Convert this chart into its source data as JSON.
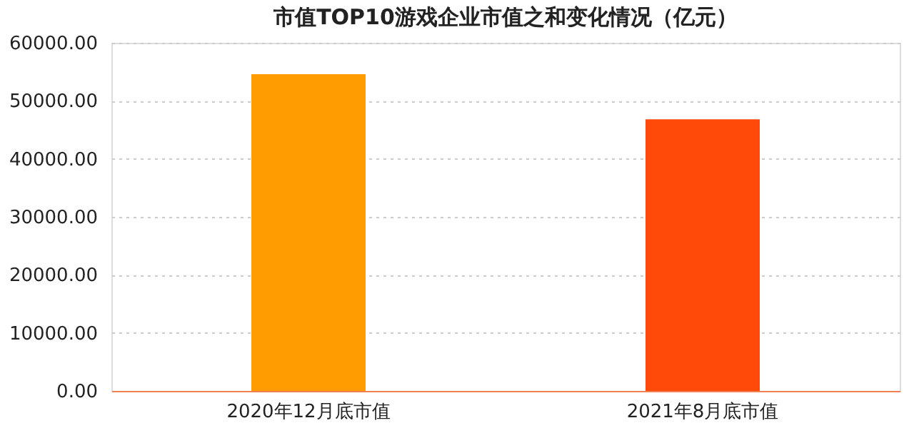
{
  "chart_data": {
    "type": "bar",
    "title": "市值TOP10游戏企业市值之和变化情况（亿元）",
    "categories": [
      "2020年12月底市值",
      "2021年8月底市值"
    ],
    "values": [
      54600,
      46800
    ],
    "colors": [
      "#ff9c00",
      "#ff4a0a"
    ],
    "ylim": [
      0,
      60000
    ],
    "yticks": [
      {
        "value": 0,
        "label": "0.00"
      },
      {
        "value": 10000,
        "label": "10000.00"
      },
      {
        "value": 20000,
        "label": "20000.00"
      },
      {
        "value": 30000,
        "label": "30000.00"
      },
      {
        "value": 40000,
        "label": "40000.00"
      },
      {
        "value": 50000,
        "label": "50000.00"
      },
      {
        "value": 60000,
        "label": "60000.00"
      }
    ],
    "grid": "y"
  }
}
